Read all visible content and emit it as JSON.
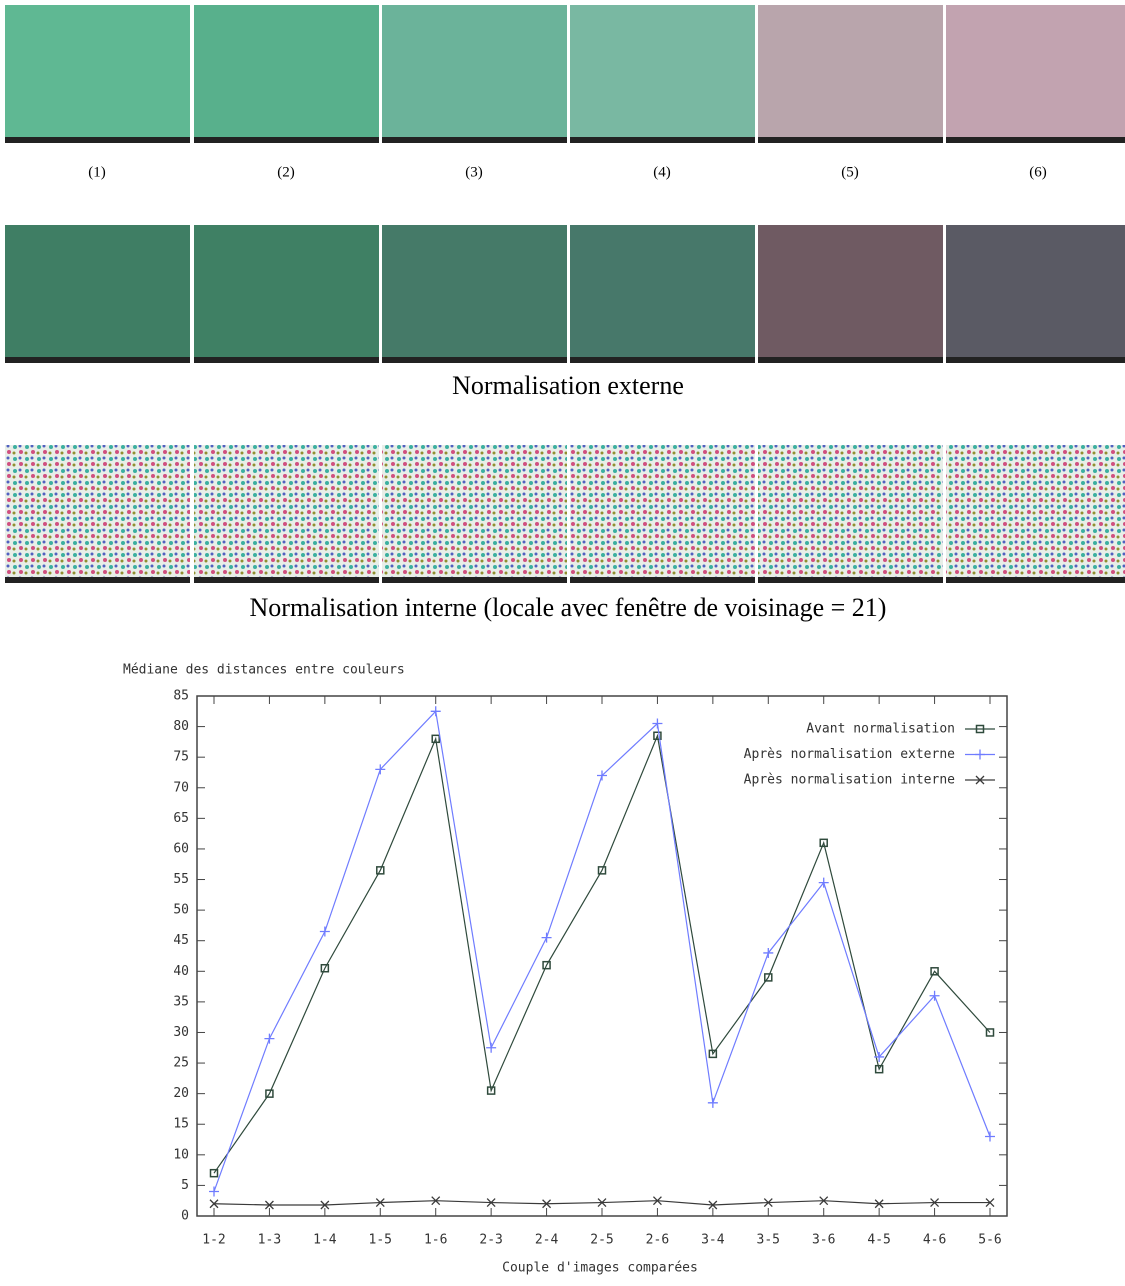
{
  "panels": {
    "labels": [
      "(1)",
      "(2)",
      "(3)",
      "(4)",
      "(5)",
      "(6)"
    ],
    "caption_external": "Normalisation externe",
    "caption_internal": "Normalisation interne (locale avec fenêtre de voisinage = 21)"
  },
  "chart_data": {
    "type": "line",
    "ylabel": "Médiane des distances entre couleurs",
    "xlabel": "Couple d'images comparées",
    "categories": [
      "1-2",
      "1-3",
      "1-4",
      "1-5",
      "1-6",
      "2-3",
      "2-4",
      "2-5",
      "2-6",
      "3-4",
      "3-5",
      "3-6",
      "4-5",
      "4-6",
      "5-6"
    ],
    "series": [
      {
        "name": "Avant normalisation",
        "color": "#2f4a3c",
        "marker": "square",
        "values": [
          7,
          20,
          40.5,
          56.5,
          78,
          20.5,
          41,
          56.5,
          78.5,
          26.5,
          39,
          61,
          24,
          40,
          30
        ]
      },
      {
        "name": "Après normalisation externe",
        "color": "#6f7cff",
        "marker": "plus",
        "values": [
          4,
          29,
          46.5,
          73,
          82.5,
          27.5,
          45.5,
          72,
          80.5,
          18.5,
          43,
          54.5,
          26,
          36,
          13
        ]
      },
      {
        "name": "Après normalisation interne",
        "color": "#3a3a3a",
        "marker": "cross",
        "values": [
          2,
          1.8,
          1.8,
          2.2,
          2.5,
          2.2,
          2,
          2.2,
          2.5,
          1.8,
          2.2,
          2.5,
          2,
          2.2,
          2.2
        ]
      }
    ],
    "ylim": [
      0,
      85
    ],
    "yticks": [
      0,
      5,
      10,
      15,
      20,
      25,
      30,
      35,
      40,
      45,
      50,
      55,
      60,
      65,
      70,
      75,
      80,
      85
    ],
    "legend": "upper right",
    "grid": false
  }
}
